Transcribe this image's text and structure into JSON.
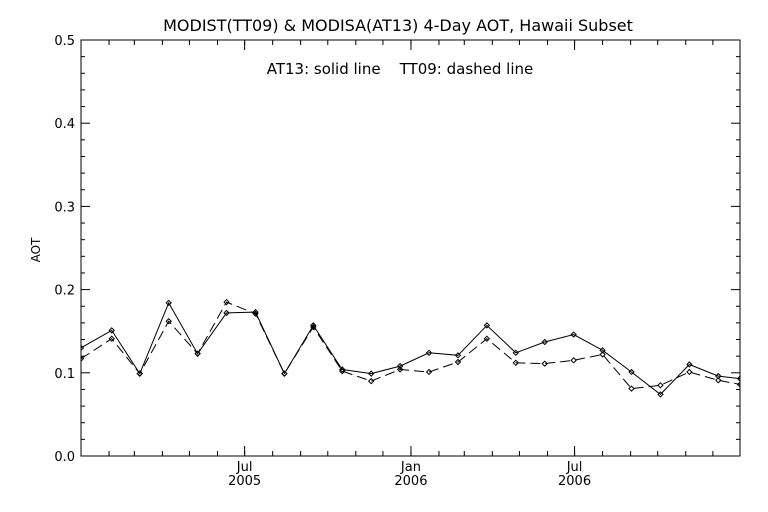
{
  "chart_data": {
    "type": "line",
    "title": "MODIST(TT09) & MODISA(AT13) 4-Day AOT, Hawaii Subset",
    "annotation": "AT13: solid line    TT09: dashed line",
    "xlabel": "",
    "ylabel": "AOT",
    "ylim": [
      0.0,
      0.5
    ],
    "yticks": [
      "0.0",
      "0.1",
      "0.2",
      "0.3",
      "0.4",
      "0.5"
    ],
    "xlim": [
      "2005-01-01",
      "2006-12-31"
    ],
    "xticks": [
      {
        "date": "2005-07-01",
        "label": "Jul",
        "sublabel": "2005"
      },
      {
        "date": "2006-01-01",
        "label": "Jan",
        "sublabel": "2006"
      },
      {
        "date": "2006-07-01",
        "label": "Jul",
        "sublabel": "2006"
      }
    ],
    "grid": false,
    "series": [
      {
        "name": "AT13",
        "style": "solid",
        "x": [
          "2005-01-01",
          "2005-02-04",
          "2005-03-07",
          "2005-04-08",
          "2005-05-10",
          "2005-06-11",
          "2005-07-13",
          "2005-08-14",
          "2005-09-15",
          "2005-10-17",
          "2005-11-18",
          "2005-12-20",
          "2006-01-21",
          "2006-02-22",
          "2006-03-26",
          "2006-04-27",
          "2006-05-29",
          "2006-06-30",
          "2006-08-01",
          "2006-09-02",
          "2006-10-04",
          "2006-11-05",
          "2006-12-07",
          "2006-12-31"
        ],
        "y": [
          0.13,
          0.151,
          0.099,
          0.184,
          0.123,
          0.172,
          0.173,
          0.099,
          0.157,
          0.104,
          0.099,
          0.108,
          0.124,
          0.121,
          0.157,
          0.124,
          0.137,
          0.146,
          0.127,
          0.101,
          0.074,
          0.11,
          0.096,
          0.093
        ]
      },
      {
        "name": "TT09",
        "style": "dashed",
        "x": [
          "2005-01-01",
          "2005-02-04",
          "2005-03-07",
          "2005-04-08",
          "2005-05-10",
          "2005-06-11",
          "2005-07-13",
          "2005-08-14",
          "2005-09-15",
          "2005-10-17",
          "2005-11-18",
          "2005-12-20",
          "2006-01-21",
          "2006-02-22",
          "2006-03-26",
          "2006-04-27",
          "2006-05-29",
          "2006-06-30",
          "2006-08-01",
          "2006-09-02",
          "2006-10-04",
          "2006-11-05",
          "2006-12-07",
          "2006-12-31"
        ],
        "y": [
          0.117,
          0.141,
          0.099,
          0.162,
          0.123,
          0.185,
          0.171,
          0.099,
          0.155,
          0.102,
          0.09,
          0.104,
          0.101,
          0.113,
          0.141,
          0.112,
          0.111,
          0.115,
          0.122,
          0.081,
          0.085,
          0.101,
          0.091,
          0.086
        ]
      }
    ]
  }
}
